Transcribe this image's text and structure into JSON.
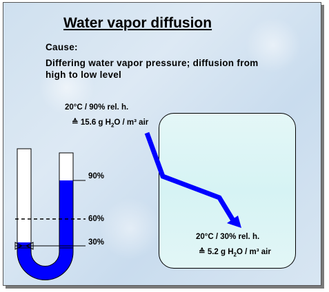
{
  "title": "Water vapor diffusion",
  "cause": {
    "label": "Cause:",
    "text": "Differing water vapor pressure; diffusion from high to low level"
  },
  "source_condition": {
    "line1": "20°C / 90% rel. h.",
    "line2_prefix": "≙ 15.6 g H",
    "line2_sub": "2",
    "line2_suffix": "O / m³ air"
  },
  "target_condition": {
    "line1": "20°C / 30% rel. h.",
    "line2_prefix": "≙ 5.2 g H",
    "line2_sub": "2",
    "line2_suffix": "O / m³ air"
  },
  "manometer": {
    "levels": [
      "90%",
      "60%",
      "30%"
    ],
    "fluid_color": "#0000ff"
  },
  "colors": {
    "arrow": "#0000ff",
    "room_fill": "#dff5f5",
    "background": "#d2e3f1"
  }
}
